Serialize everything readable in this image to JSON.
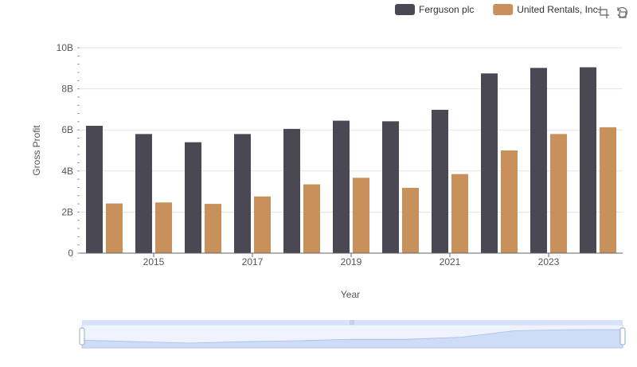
{
  "chart_data": {
    "type": "bar",
    "title": "",
    "xlabel": "Year",
    "ylabel": "Gross Profit",
    "ylim": [
      0,
      10000000000
    ],
    "y_ticks": [
      {
        "value": 0,
        "label": "0"
      },
      {
        "value": 2000000000,
        "label": "2B"
      },
      {
        "value": 4000000000,
        "label": "4B"
      },
      {
        "value": 6000000000,
        "label": "6B"
      },
      {
        "value": 8000000000,
        "label": "8B"
      },
      {
        "value": 10000000000,
        "label": "10B"
      }
    ],
    "categories": [
      "2014",
      "2015",
      "2016",
      "2017",
      "2018",
      "2019",
      "2020",
      "2021",
      "2022",
      "2023",
      "2024"
    ],
    "x_tick_labels": [
      "2015",
      "2017",
      "2019",
      "2021",
      "2023"
    ],
    "grid": true,
    "legend_position": "top-right",
    "series": [
      {
        "name": "Ferguson plc",
        "color": "#4a4853",
        "values": [
          6200000000,
          5800000000,
          5400000000,
          5800000000,
          6050000000,
          6450000000,
          6420000000,
          6980000000,
          8750000000,
          9020000000,
          9050000000
        ]
      },
      {
        "name": "United Rentals, Inc.",
        "color": "#c8915c",
        "values": [
          2420000000,
          2470000000,
          2400000000,
          2760000000,
          3350000000,
          3670000000,
          3180000000,
          3850000000,
          5000000000,
          5800000000,
          6130000000
        ]
      }
    ]
  },
  "toolbar": {
    "zoom_icon": "zoom-select-icon",
    "restore_icon": "restore-icon"
  },
  "data_zoom": {
    "range": [
      0,
      100
    ]
  }
}
